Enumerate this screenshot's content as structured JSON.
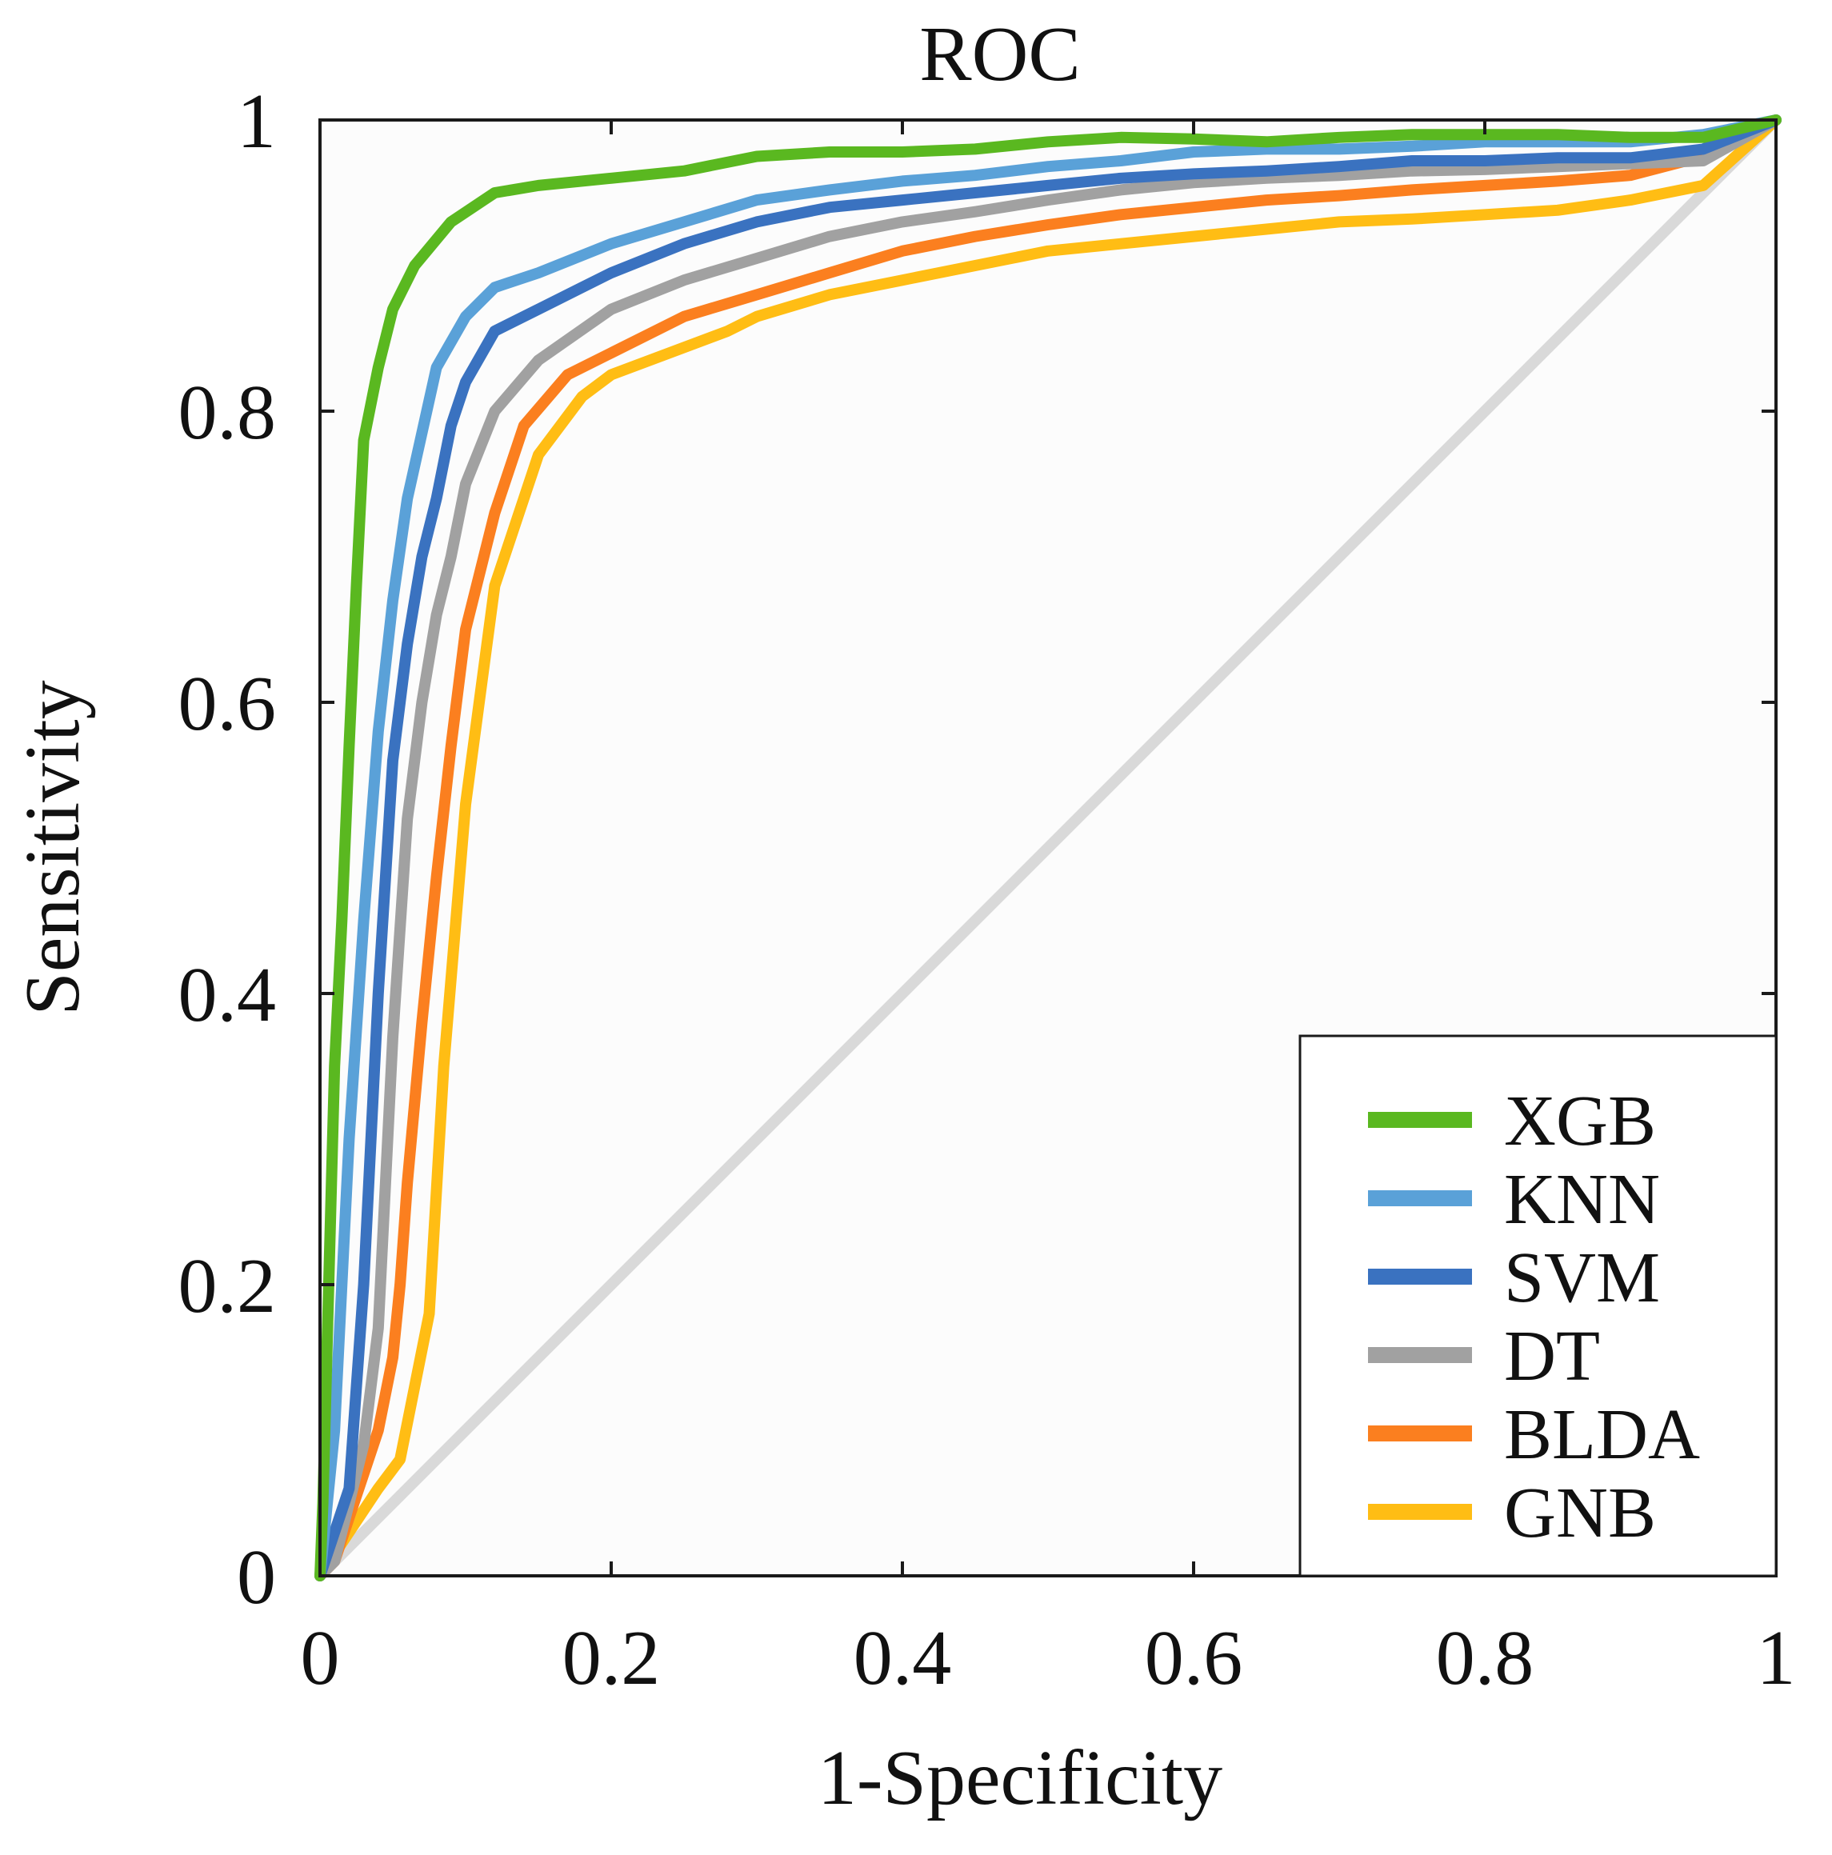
{
  "chart_data": {
    "type": "line",
    "title": "ROC",
    "xlabel": "1-Specificity",
    "ylabel": "Sensitivity",
    "xlim": [
      0,
      1
    ],
    "ylim": [
      0,
      1
    ],
    "x_ticks": [
      "0",
      "0.2",
      "0.4",
      "0.6",
      "0.8",
      "1"
    ],
    "y_ticks": [
      "0",
      "0.2",
      "0.4",
      "0.6",
      "0.8",
      "1"
    ],
    "grid": false,
    "legend_position": "bottom-right",
    "reference_line": {
      "x": [
        0,
        1
      ],
      "y": [
        0,
        1
      ],
      "color": "#d9d9d9"
    },
    "series": [
      {
        "name": "XGB",
        "color": "#5ab820",
        "x": [
          0,
          0.002,
          0.006,
          0.01,
          0.015,
          0.02,
          0.025,
          0.03,
          0.04,
          0.05,
          0.065,
          0.09,
          0.12,
          0.15,
          0.2,
          0.25,
          0.3,
          0.35,
          0.4,
          0.45,
          0.5,
          0.55,
          0.6,
          0.65,
          0.7,
          0.75,
          0.8,
          0.85,
          0.9,
          0.95,
          1
        ],
        "y": [
          0,
          0.05,
          0.2,
          0.35,
          0.45,
          0.57,
          0.68,
          0.78,
          0.83,
          0.87,
          0.9,
          0.93,
          0.95,
          0.955,
          0.96,
          0.965,
          0.975,
          0.978,
          0.978,
          0.98,
          0.985,
          0.988,
          0.987,
          0.985,
          0.988,
          0.99,
          0.99,
          0.99,
          0.988,
          0.988,
          1
        ]
      },
      {
        "name": "KNN",
        "color": "#5aa1d8",
        "x": [
          0,
          0.01,
          0.02,
          0.03,
          0.04,
          0.05,
          0.06,
          0.08,
          0.1,
          0.12,
          0.15,
          0.2,
          0.25,
          0.3,
          0.35,
          0.4,
          0.45,
          0.5,
          0.55,
          0.6,
          0.65,
          0.7,
          0.75,
          0.8,
          0.85,
          0.9,
          0.95,
          1
        ],
        "y": [
          0,
          0.1,
          0.3,
          0.45,
          0.58,
          0.67,
          0.74,
          0.83,
          0.865,
          0.885,
          0.895,
          0.915,
          0.93,
          0.945,
          0.952,
          0.958,
          0.962,
          0.968,
          0.972,
          0.978,
          0.98,
          0.98,
          0.982,
          0.985,
          0.985,
          0.985,
          0.99,
          1
        ]
      },
      {
        "name": "SVM",
        "color": "#3a72c0",
        "x": [
          0,
          0.01,
          0.02,
          0.03,
          0.04,
          0.05,
          0.06,
          0.07,
          0.08,
          0.09,
          0.1,
          0.12,
          0.15,
          0.18,
          0.2,
          0.25,
          0.3,
          0.35,
          0.4,
          0.45,
          0.5,
          0.55,
          0.6,
          0.65,
          0.7,
          0.75,
          0.8,
          0.85,
          0.9,
          0.95,
          1
        ],
        "y": [
          0,
          0.03,
          0.06,
          0.2,
          0.4,
          0.56,
          0.64,
          0.7,
          0.74,
          0.79,
          0.82,
          0.855,
          0.87,
          0.885,
          0.895,
          0.915,
          0.93,
          0.94,
          0.945,
          0.95,
          0.955,
          0.96,
          0.963,
          0.965,
          0.968,
          0.972,
          0.972,
          0.974,
          0.974,
          0.98,
          1
        ]
      },
      {
        "name": "DT",
        "color": "#a1a1a1",
        "x": [
          0,
          0.01,
          0.02,
          0.03,
          0.04,
          0.05,
          0.06,
          0.07,
          0.08,
          0.09,
          0.1,
          0.12,
          0.15,
          0.2,
          0.25,
          0.3,
          0.35,
          0.4,
          0.45,
          0.5,
          0.55,
          0.6,
          0.65,
          0.7,
          0.75,
          0.8,
          0.85,
          0.9,
          0.95,
          1
        ],
        "y": [
          0,
          0.01,
          0.05,
          0.09,
          0.17,
          0.37,
          0.52,
          0.6,
          0.66,
          0.7,
          0.75,
          0.8,
          0.835,
          0.87,
          0.89,
          0.905,
          0.92,
          0.93,
          0.937,
          0.945,
          0.952,
          0.957,
          0.96,
          0.962,
          0.965,
          0.966,
          0.968,
          0.97,
          0.972,
          1
        ]
      },
      {
        "name": "BLDA",
        "color": "#fb7f1f",
        "x": [
          0,
          0.01,
          0.02,
          0.03,
          0.04,
          0.05,
          0.055,
          0.06,
          0.07,
          0.08,
          0.09,
          0.1,
          0.12,
          0.14,
          0.17,
          0.2,
          0.25,
          0.3,
          0.35,
          0.4,
          0.45,
          0.5,
          0.55,
          0.6,
          0.65,
          0.7,
          0.75,
          0.8,
          0.85,
          0.9,
          0.95,
          1
        ],
        "y": [
          0,
          0.01,
          0.04,
          0.07,
          0.1,
          0.15,
          0.2,
          0.27,
          0.38,
          0.48,
          0.57,
          0.65,
          0.73,
          0.79,
          0.825,
          0.84,
          0.865,
          0.88,
          0.895,
          0.91,
          0.92,
          0.928,
          0.935,
          0.94,
          0.945,
          0.948,
          0.952,
          0.955,
          0.958,
          0.962,
          0.975,
          1
        ]
      },
      {
        "name": "GNB",
        "color": "#ffbd14",
        "x": [
          0,
          0.02,
          0.04,
          0.055,
          0.065,
          0.075,
          0.085,
          0.1,
          0.12,
          0.15,
          0.18,
          0.2,
          0.24,
          0.28,
          0.3,
          0.35,
          0.4,
          0.45,
          0.5,
          0.55,
          0.6,
          0.65,
          0.7,
          0.75,
          0.8,
          0.85,
          0.9,
          0.95,
          1
        ],
        "y": [
          0,
          0.03,
          0.06,
          0.08,
          0.13,
          0.18,
          0.35,
          0.53,
          0.68,
          0.77,
          0.81,
          0.825,
          0.84,
          0.855,
          0.865,
          0.88,
          0.89,
          0.9,
          0.91,
          0.915,
          0.92,
          0.925,
          0.93,
          0.932,
          0.935,
          0.938,
          0.945,
          0.955,
          1
        ]
      }
    ]
  }
}
